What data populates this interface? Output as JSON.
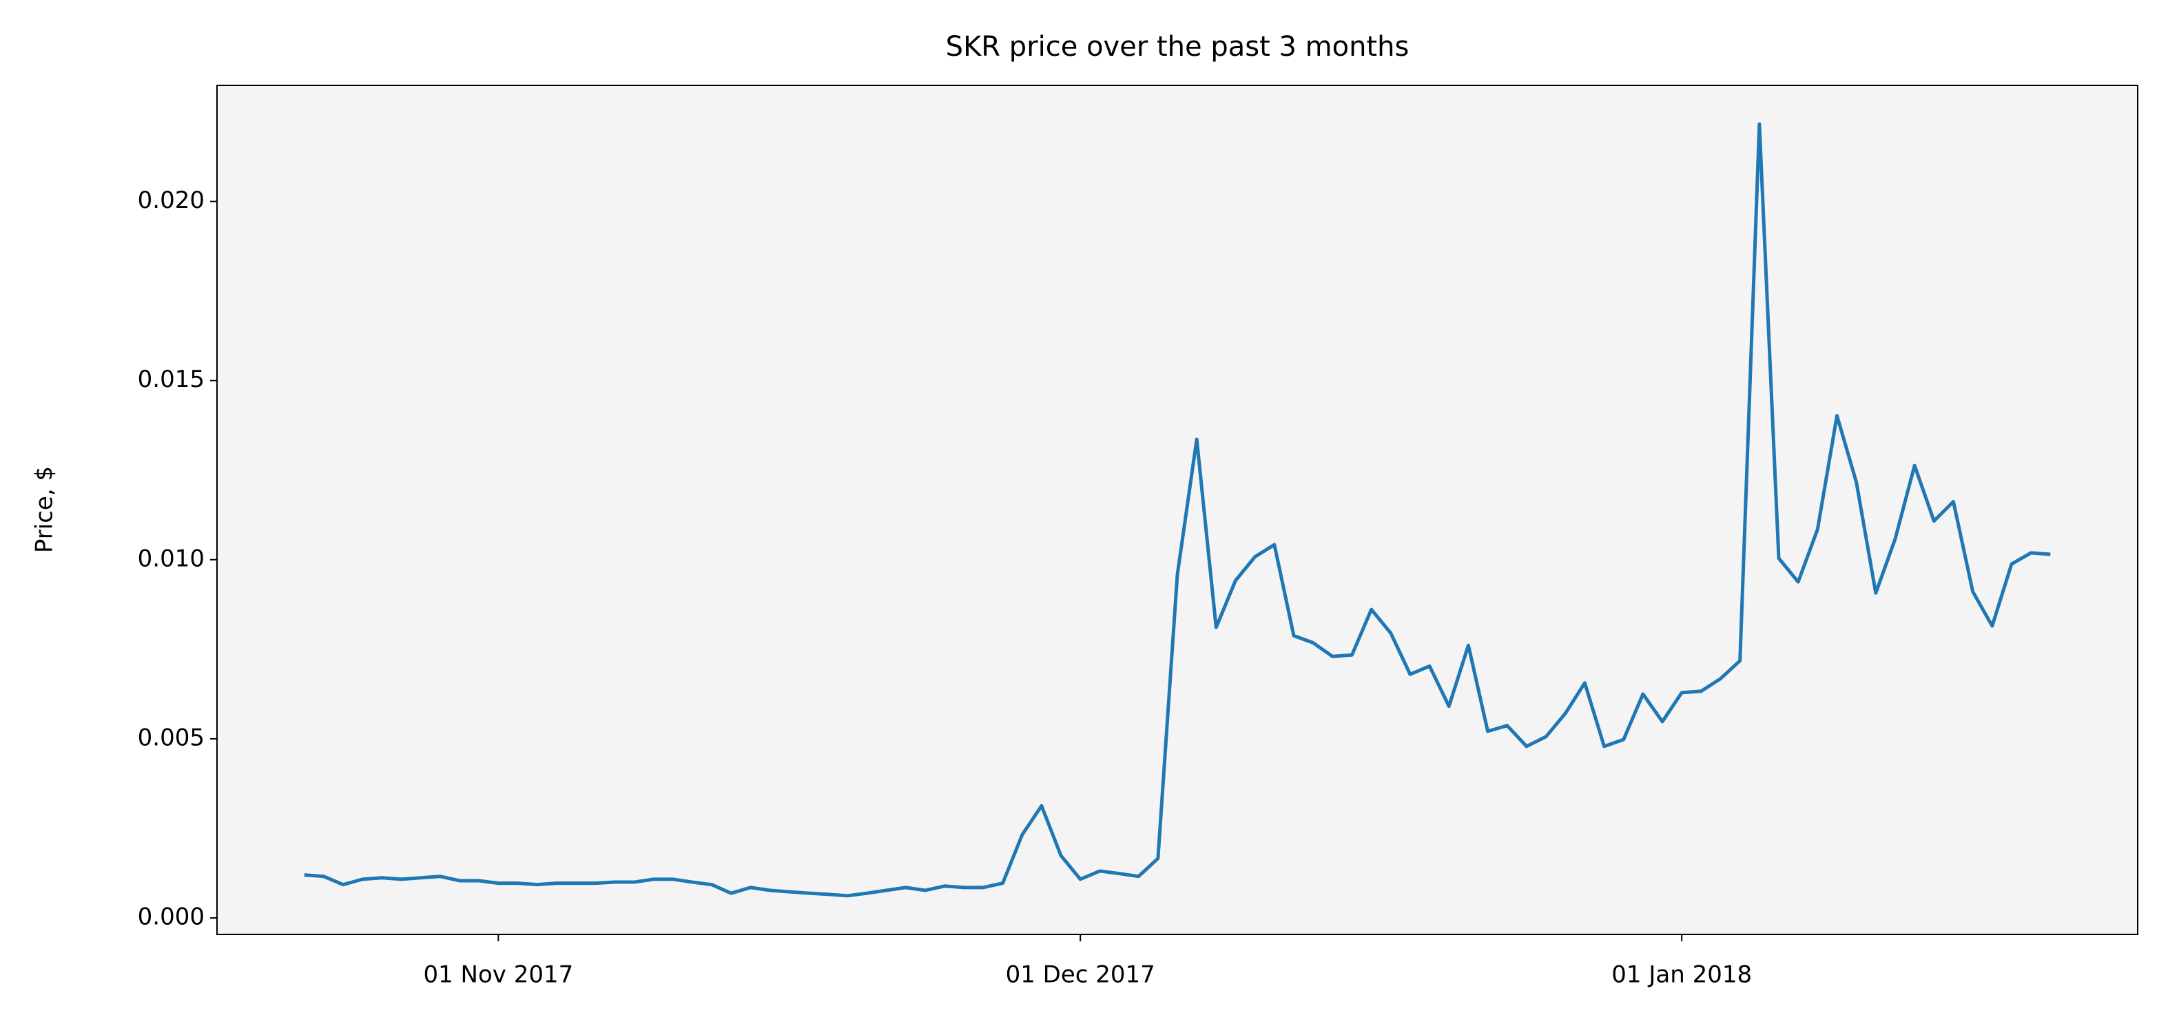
{
  "chart_data": {
    "type": "line",
    "title": "SKR price over the past 3 months",
    "y_label": "Price, $",
    "x": [
      "2017-10-22",
      "2017-10-23",
      "2017-10-24",
      "2017-10-25",
      "2017-10-26",
      "2017-10-27",
      "2017-10-28",
      "2017-10-29",
      "2017-10-30",
      "2017-10-31",
      "2017-11-01",
      "2017-11-02",
      "2017-11-03",
      "2017-11-04",
      "2017-11-05",
      "2017-11-06",
      "2017-11-07",
      "2017-11-08",
      "2017-11-09",
      "2017-11-10",
      "2017-11-11",
      "2017-11-12",
      "2017-11-13",
      "2017-11-14",
      "2017-11-15",
      "2017-11-16",
      "2017-11-17",
      "2017-11-18",
      "2017-11-19",
      "2017-11-20",
      "2017-11-21",
      "2017-11-22",
      "2017-11-23",
      "2017-11-24",
      "2017-11-25",
      "2017-11-26",
      "2017-11-27",
      "2017-11-28",
      "2017-11-29",
      "2017-11-30",
      "2017-12-01",
      "2017-12-02",
      "2017-12-03",
      "2017-12-04",
      "2017-12-05",
      "2017-12-06",
      "2017-12-07",
      "2017-12-08",
      "2017-12-09",
      "2017-12-10",
      "2017-12-11",
      "2017-12-12",
      "2017-12-13",
      "2017-12-14",
      "2017-12-15",
      "2017-12-16",
      "2017-12-17",
      "2017-12-18",
      "2017-12-19",
      "2017-12-20",
      "2017-12-21",
      "2017-12-22",
      "2017-12-23",
      "2017-12-24",
      "2017-12-25",
      "2017-12-26",
      "2017-12-27",
      "2017-12-28",
      "2017-12-29",
      "2017-12-30",
      "2017-12-31",
      "2018-01-01",
      "2018-01-02",
      "2018-01-03",
      "2018-01-04",
      "2018-01-05",
      "2018-01-06",
      "2018-01-07",
      "2018-01-08",
      "2018-01-09",
      "2018-01-10",
      "2018-01-11",
      "2018-01-12",
      "2018-01-13",
      "2018-01-14",
      "2018-01-15",
      "2018-01-16",
      "2018-01-17",
      "2018-01-18",
      "2018-01-19",
      "2018-01-20"
    ],
    "series": [
      {
        "name": "SKR",
        "color": "#1f77b4",
        "values": [
          0.0012,
          0.00116,
          0.00093,
          0.00108,
          0.00112,
          0.00108,
          0.00112,
          0.00116,
          0.00104,
          0.00104,
          0.00097,
          0.00097,
          0.00093,
          0.00097,
          0.00097,
          0.00097,
          0.001,
          0.001,
          0.00108,
          0.00108,
          0.001,
          0.00093,
          0.00069,
          0.00085,
          0.00077,
          0.00073,
          0.00069,
          0.00066,
          0.00062,
          0.00069,
          0.00077,
          0.00085,
          0.00077,
          0.00089,
          0.00085,
          0.00085,
          0.00097,
          0.00232,
          0.00313,
          0.00174,
          0.00108,
          0.00131,
          0.00124,
          0.00116,
          0.00166,
          0.00958,
          0.01336,
          0.00811,
          0.00942,
          0.01008,
          0.01042,
          0.00788,
          0.00768,
          0.0073,
          0.00734,
          0.00861,
          0.00795,
          0.0068,
          0.00703,
          0.00591,
          0.00761,
          0.00521,
          0.00537,
          0.00479,
          0.00506,
          0.00571,
          0.00656,
          0.00479,
          0.00498,
          0.00625,
          0.00548,
          0.00629,
          0.00633,
          0.00668,
          0.00718,
          0.02216,
          0.01004,
          0.00938,
          0.01085,
          0.01402,
          0.01216,
          0.00907,
          0.01058,
          0.01263,
          0.01108,
          0.01162,
          0.00911,
          0.00815,
          0.00988,
          0.01019,
          0.01015
        ]
      }
    ],
    "xlim": [
      "2017-10-17T12:00:00Z",
      "2018-01-24T12:00:00Z"
    ],
    "xticks": [
      {
        "value": "2017-11-01",
        "label": "01 Nov 2017"
      },
      {
        "value": "2017-12-01",
        "label": "01 Dec 2017"
      },
      {
        "value": "2018-01-01",
        "label": "01 Jan 2018"
      }
    ],
    "ylim": [
      -0.00046,
      0.02324
    ],
    "yticks": [
      {
        "value": 0,
        "label": "0.000"
      },
      {
        "value": 0.005,
        "label": "0.005"
      },
      {
        "value": 0.01,
        "label": "0.010"
      },
      {
        "value": 0.015,
        "label": "0.015"
      },
      {
        "value": 0.02,
        "label": "0.020"
      }
    ],
    "background": "#f4f4f4"
  }
}
